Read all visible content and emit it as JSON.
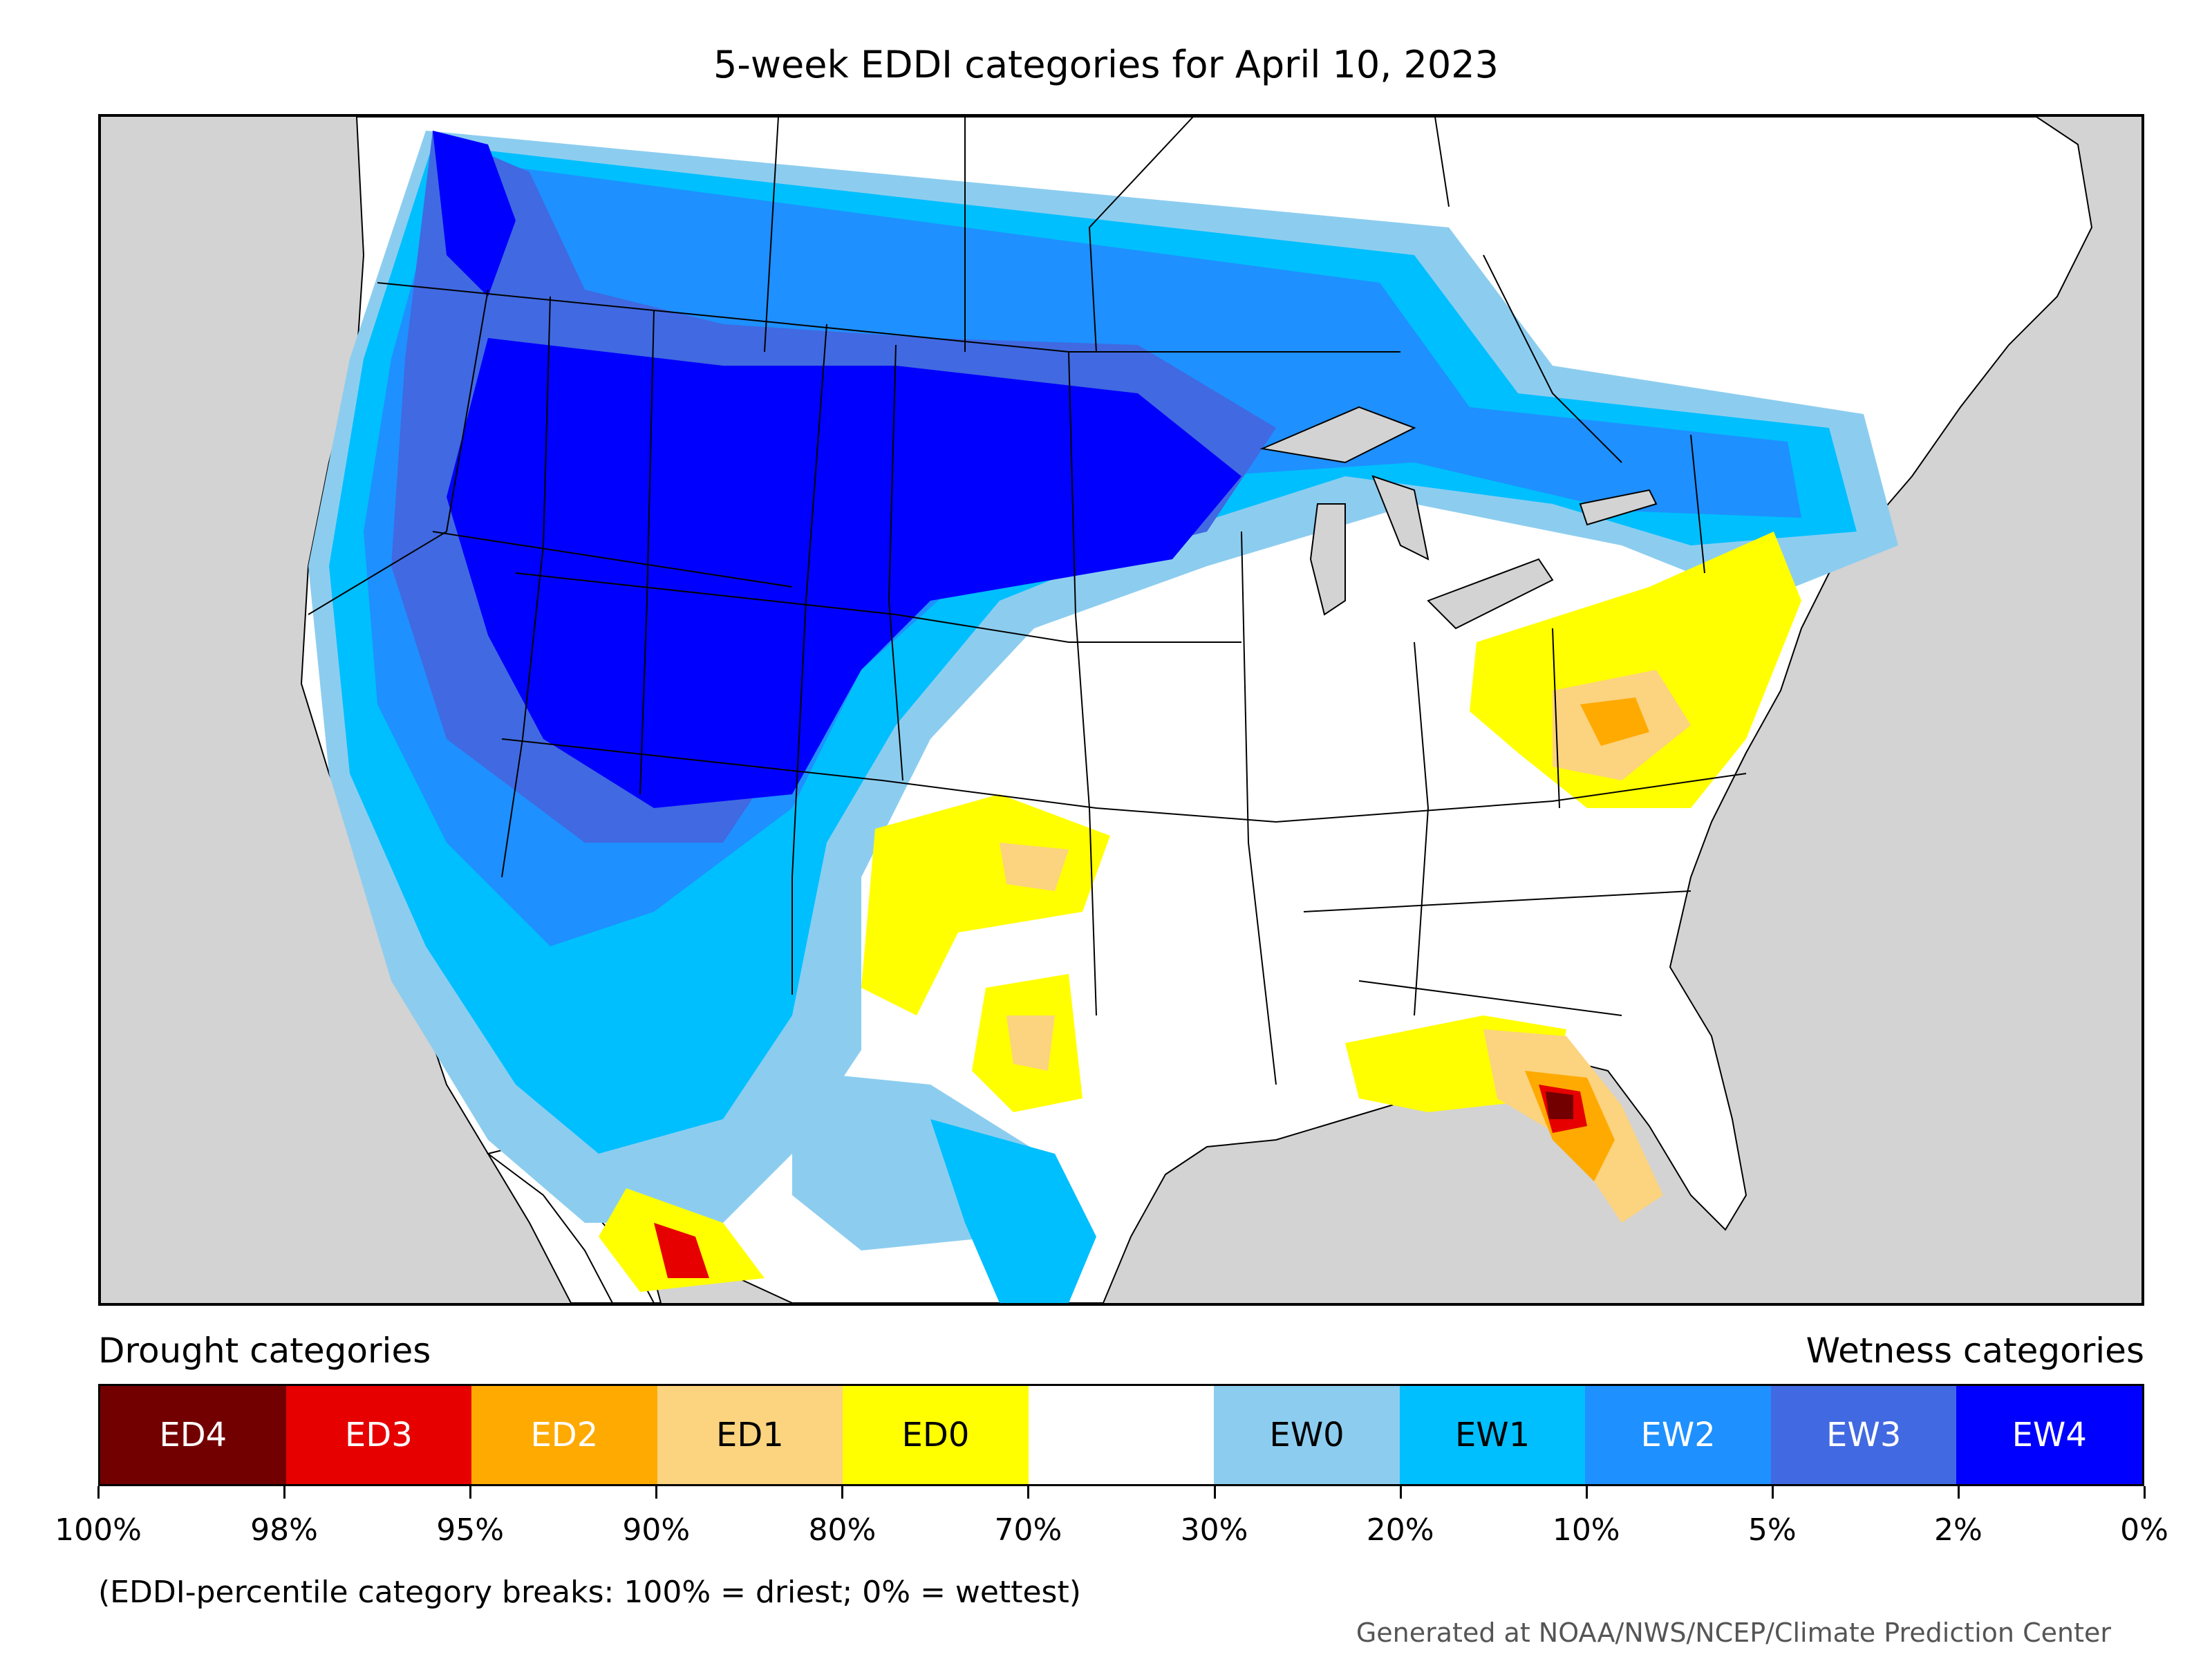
{
  "title": "5-week EDDI categories for April 10, 2023",
  "legend": {
    "left_heading": "Drought categories",
    "right_heading": "Wetness categories",
    "categories": [
      {
        "label": "ED4",
        "color": "#730000",
        "text_color": "#ffffff"
      },
      {
        "label": "ED3",
        "color": "#e60000",
        "text_color": "#ffffff"
      },
      {
        "label": "ED2",
        "color": "#ffaa00",
        "text_color": "#ffffff"
      },
      {
        "label": "ED1",
        "color": "#fcd37f",
        "text_color": "#000000"
      },
      {
        "label": "ED0",
        "color": "#ffff00",
        "text_color": "#000000"
      },
      {
        "label": "",
        "color": "#ffffff",
        "text_color": "#000000"
      },
      {
        "label": "EW0",
        "color": "#8ccdef",
        "text_color": "#000000"
      },
      {
        "label": "EW1",
        "color": "#00bfff",
        "text_color": "#000000"
      },
      {
        "label": "EW2",
        "color": "#1e90ff",
        "text_color": "#ffffff"
      },
      {
        "label": "EW3",
        "color": "#4169e1",
        "text_color": "#ffffff"
      },
      {
        "label": "EW4",
        "color": "#0000ff",
        "text_color": "#ffffff"
      }
    ],
    "breaks": [
      "100%",
      "98%",
      "95%",
      "90%",
      "80%",
      "70%",
      "30%",
      "20%",
      "10%",
      "5%",
      "2%",
      "0%"
    ]
  },
  "note": "(EDDI-percentile category breaks: 100% = driest; 0% = wettest)",
  "credit": "Generated at NOAA/NWS/NCEP/Climate Prediction Center",
  "colors": {
    "ocean": "#d3d3d3",
    "land": "#ffffff",
    "border": "#000000"
  }
}
